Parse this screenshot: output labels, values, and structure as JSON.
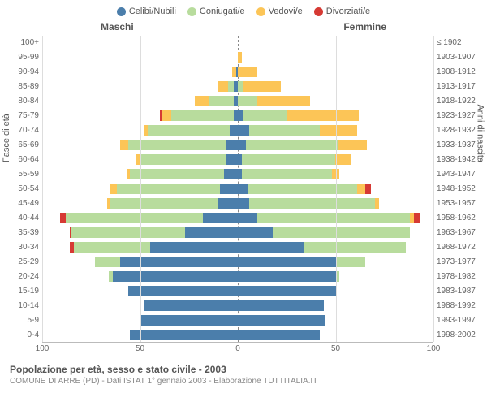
{
  "chart": {
    "type": "population-pyramid",
    "legend": [
      {
        "label": "Celibi/Nubili",
        "color": "#4b7eab"
      },
      {
        "label": "Coniugati/e",
        "color": "#b8dc9d"
      },
      {
        "label": "Vedovi/e",
        "color": "#fcc557"
      },
      {
        "label": "Divorziati/e",
        "color": "#d63a34"
      }
    ],
    "column_left": "Maschi",
    "column_right": "Femmine",
    "y_axis_left_title": "Fasce di età",
    "y_axis_right_title": "Anni di nascita",
    "x_max": 100,
    "x_ticks": [
      100,
      50,
      0,
      50,
      100
    ],
    "background": "#ffffff",
    "grid_color": "#dddddd",
    "age_bands": [
      {
        "age": "100+",
        "birth": "≤ 1902",
        "m": [
          0,
          0,
          0,
          0
        ],
        "f": [
          0,
          0,
          0,
          0
        ]
      },
      {
        "age": "95-99",
        "birth": "1903-1907",
        "m": [
          0,
          0,
          0,
          0
        ],
        "f": [
          0,
          0,
          2,
          0
        ]
      },
      {
        "age": "90-94",
        "birth": "1908-1912",
        "m": [
          1,
          0,
          2,
          0
        ],
        "f": [
          0,
          0,
          10,
          0
        ]
      },
      {
        "age": "85-89",
        "birth": "1913-1917",
        "m": [
          2,
          3,
          5,
          0
        ],
        "f": [
          0,
          3,
          19,
          0
        ]
      },
      {
        "age": "80-84",
        "birth": "1918-1922",
        "m": [
          2,
          13,
          7,
          0
        ],
        "f": [
          0,
          10,
          27,
          0
        ]
      },
      {
        "age": "75-79",
        "birth": "1923-1927",
        "m": [
          2,
          32,
          5,
          1
        ],
        "f": [
          3,
          22,
          37,
          0
        ]
      },
      {
        "age": "70-74",
        "birth": "1928-1932",
        "m": [
          4,
          42,
          2,
          0
        ],
        "f": [
          6,
          36,
          19,
          0
        ]
      },
      {
        "age": "65-69",
        "birth": "1933-1937",
        "m": [
          6,
          50,
          4,
          0
        ],
        "f": [
          4,
          47,
          15,
          0
        ]
      },
      {
        "age": "60-64",
        "birth": "1938-1942",
        "m": [
          6,
          44,
          2,
          0
        ],
        "f": [
          2,
          48,
          8,
          0
        ]
      },
      {
        "age": "55-59",
        "birth": "1943-1947",
        "m": [
          7,
          48,
          2,
          0
        ],
        "f": [
          2,
          46,
          4,
          0
        ]
      },
      {
        "age": "50-54",
        "birth": "1948-1952",
        "m": [
          9,
          53,
          3,
          0
        ],
        "f": [
          5,
          56,
          4,
          3
        ]
      },
      {
        "age": "45-49",
        "birth": "1953-1957",
        "m": [
          10,
          55,
          2,
          0
        ],
        "f": [
          6,
          64,
          2,
          0
        ]
      },
      {
        "age": "40-44",
        "birth": "1958-1962",
        "m": [
          18,
          70,
          0,
          3
        ],
        "f": [
          10,
          78,
          2,
          3
        ]
      },
      {
        "age": "35-39",
        "birth": "1963-1967",
        "m": [
          27,
          58,
          0,
          1
        ],
        "f": [
          18,
          70,
          0,
          0
        ]
      },
      {
        "age": "30-34",
        "birth": "1968-1972",
        "m": [
          45,
          39,
          0,
          2
        ],
        "f": [
          34,
          52,
          0,
          0
        ]
      },
      {
        "age": "25-29",
        "birth": "1973-1977",
        "m": [
          60,
          13,
          0,
          0
        ],
        "f": [
          50,
          15,
          0,
          0
        ]
      },
      {
        "age": "20-24",
        "birth": "1978-1982",
        "m": [
          64,
          2,
          0,
          0
        ],
        "f": [
          50,
          2,
          0,
          0
        ]
      },
      {
        "age": "15-19",
        "birth": "1983-1987",
        "m": [
          56,
          0,
          0,
          0
        ],
        "f": [
          50,
          0,
          0,
          0
        ]
      },
      {
        "age": "10-14",
        "birth": "1988-1992",
        "m": [
          48,
          0,
          0,
          0
        ],
        "f": [
          44,
          0,
          0,
          0
        ]
      },
      {
        "age": "5-9",
        "birth": "1993-1997",
        "m": [
          50,
          0,
          0,
          0
        ],
        "f": [
          45,
          0,
          0,
          0
        ]
      },
      {
        "age": "0-4",
        "birth": "1998-2002",
        "m": [
          55,
          0,
          0,
          0
        ],
        "f": [
          42,
          0,
          0,
          0
        ]
      }
    ]
  },
  "footer": {
    "title": "Popolazione per età, sesso e stato civile - 2003",
    "subtitle": "COMUNE DI ARRE (PD) - Dati ISTAT 1° gennaio 2003 - Elaborazione TUTTITALIA.IT"
  }
}
